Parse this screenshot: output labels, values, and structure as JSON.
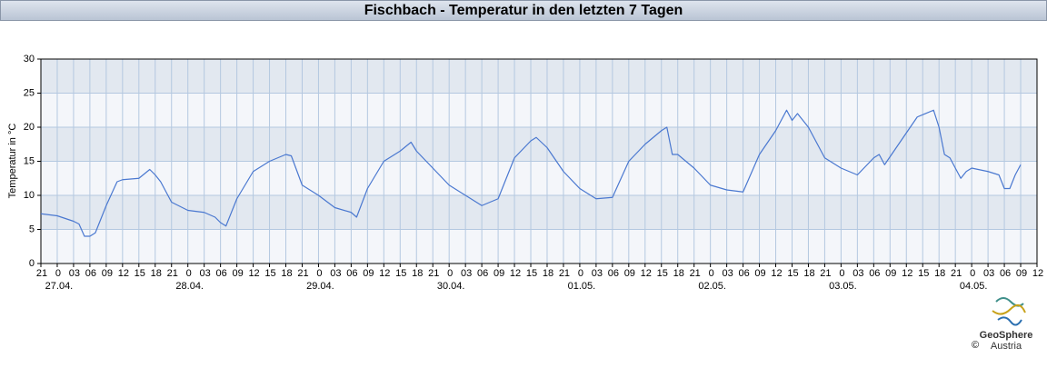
{
  "chart_data": {
    "type": "line",
    "title": "Fischbach - Temperatur in den letzten 7 Tagen",
    "y_label": "Temperatur in °C",
    "logo": [
      "GeoSphere",
      "Austria"
    ],
    "copyright": "©",
    "bands": true,
    "grid": true,
    "xlim": [
      -3,
      180
    ],
    "ylim": [
      0,
      30
    ],
    "yticks": [
      0,
      5,
      10,
      15,
      20,
      25,
      30
    ],
    "xticks": [
      {
        "value": -3,
        "label": "21"
      },
      0,
      {
        "value": 3,
        "label": "03"
      },
      {
        "value": 6,
        "label": "06"
      },
      {
        "value": 9,
        "label": "09"
      },
      {
        "value": 12,
        "label": "12"
      },
      {
        "value": 15,
        "label": "15"
      },
      {
        "value": 18,
        "label": "18"
      },
      {
        "value": 21,
        "label": "21"
      },
      {
        "value": 24,
        "label": "0"
      },
      {
        "value": 27,
        "label": "03"
      },
      {
        "value": 30,
        "label": "06"
      },
      {
        "value": 33,
        "label": "09"
      },
      {
        "value": 36,
        "label": "12"
      },
      {
        "value": 39,
        "label": "15"
      },
      {
        "value": 42,
        "label": "18"
      },
      {
        "value": 45,
        "label": "21"
      },
      {
        "value": 48,
        "label": "0"
      },
      {
        "value": 51,
        "label": "03"
      },
      {
        "value": 54,
        "label": "06"
      },
      {
        "value": 57,
        "label": "09"
      },
      {
        "value": 60,
        "label": "12"
      },
      {
        "value": 63,
        "label": "15"
      },
      {
        "value": 66,
        "label": "18"
      },
      {
        "value": 69,
        "label": "21"
      },
      {
        "value": 72,
        "label": "0"
      },
      {
        "value": 75,
        "label": "03"
      },
      {
        "value": 78,
        "label": "06"
      },
      {
        "value": 81,
        "label": "09"
      },
      {
        "value": 84,
        "label": "12"
      },
      {
        "value": 87,
        "label": "15"
      },
      {
        "value": 90,
        "label": "18"
      },
      {
        "value": 93,
        "label": "21"
      },
      {
        "value": 96,
        "label": "0"
      },
      {
        "value": 99,
        "label": "03"
      },
      {
        "value": 102,
        "label": "06"
      },
      {
        "value": 105,
        "label": "09"
      },
      {
        "value": 108,
        "label": "12"
      },
      {
        "value": 111,
        "label": "15"
      },
      {
        "value": 114,
        "label": "18"
      },
      {
        "value": 117,
        "label": "21"
      },
      {
        "value": 120,
        "label": "0"
      },
      {
        "value": 123,
        "label": "03"
      },
      {
        "value": 126,
        "label": "06"
      },
      {
        "value": 129,
        "label": "09"
      },
      {
        "value": 132,
        "label": "12"
      },
      {
        "value": 135,
        "label": "15"
      },
      {
        "value": 138,
        "label": "18"
      },
      {
        "value": 141,
        "label": "21"
      },
      {
        "value": 144,
        "label": "0"
      },
      {
        "value": 147,
        "label": "03"
      },
      {
        "value": 150,
        "label": "06"
      },
      {
        "value": 153,
        "label": "09"
      },
      {
        "value": 156,
        "label": "12"
      },
      {
        "value": 159,
        "label": "15"
      },
      {
        "value": 162,
        "label": "18"
      },
      {
        "value": 165,
        "label": "21"
      },
      {
        "value": 168,
        "label": "0"
      },
      {
        "value": 171,
        "label": "03"
      },
      {
        "value": 174,
        "label": "06"
      },
      {
        "value": 177,
        "label": "09"
      },
      {
        "value": 180,
        "label": "12"
      }
    ],
    "xdates": [
      {
        "value": 0,
        "label": "27.04."
      },
      {
        "value": 24,
        "label": "28.04."
      },
      {
        "value": 48,
        "label": "29.04."
      },
      {
        "value": 72,
        "label": "30.04."
      },
      {
        "value": 96,
        "label": "01.05."
      },
      {
        "value": 120,
        "label": "02.05."
      },
      {
        "value": 144,
        "label": "03.05."
      },
      {
        "value": 168,
        "label": "04.05."
      }
    ],
    "x": [
      -3,
      0,
      3,
      4,
      5,
      6,
      7,
      9,
      11,
      12,
      15,
      17,
      18,
      19,
      21,
      24,
      27,
      29,
      30,
      31,
      33,
      36,
      39,
      42,
      43,
      45,
      48,
      51,
      54,
      55,
      57,
      60,
      63,
      65,
      66,
      69,
      72,
      75,
      78,
      81,
      84,
      87,
      88,
      90,
      93,
      96,
      99,
      102,
      105,
      108,
      111,
      112,
      113,
      114,
      117,
      120,
      123,
      126,
      129,
      132,
      134,
      135,
      136,
      138,
      141,
      144,
      147,
      150,
      151,
      152,
      155,
      158,
      161,
      162,
      163,
      164,
      166,
      167,
      168,
      171,
      173,
      174,
      175,
      176,
      177
    ],
    "series": [
      {
        "color": "#4a78d0",
        "values": [
          7.3,
          7,
          6.2,
          5.8,
          4,
          4,
          4.5,
          8.5,
          12,
          12.3,
          12.5,
          13.8,
          13,
          12,
          9,
          7.8,
          7.5,
          6.8,
          6,
          5.5,
          9.5,
          13.5,
          15,
          16,
          15.8,
          11.5,
          10,
          8.2,
          7.5,
          6.8,
          11,
          15,
          16.5,
          17.8,
          16.5,
          14,
          11.5,
          10,
          8.5,
          9.5,
          15.5,
          18,
          18.5,
          17,
          13.5,
          11,
          9.5,
          9.7,
          15,
          17.5,
          19.5,
          20,
          16,
          16,
          14,
          11.5,
          10.8,
          10.5,
          16,
          19.5,
          22.5,
          21,
          22,
          20,
          15.5,
          14,
          13,
          15.5,
          16,
          14.5,
          18,
          21.5,
          22.5,
          20,
          16,
          15.5,
          12.5,
          13.5,
          14,
          13.5,
          13,
          11,
          11,
          13,
          14.5
        ]
      }
    ]
  }
}
